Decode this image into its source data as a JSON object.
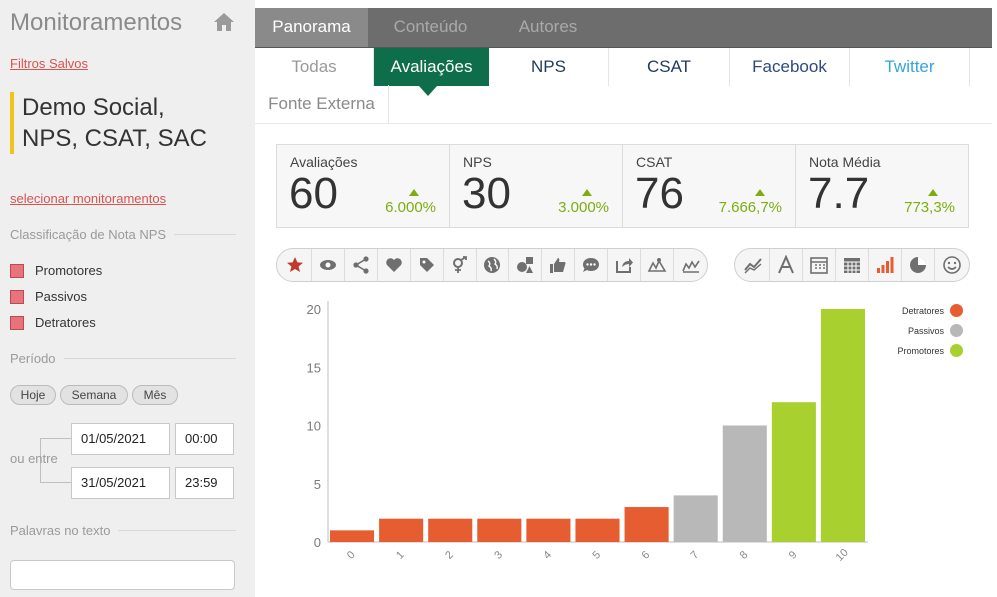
{
  "sidebar": {
    "title": "Monitoramentos",
    "saved_filters": "Filtros Salvos",
    "monitor_name": [
      "Demo Social,",
      "NPS, CSAT, SAC"
    ],
    "select_monitors": "selecionar monitoramentos",
    "nps_classification": {
      "heading": "Classificação de Nota NPS",
      "options": [
        "Promotores",
        "Passivos",
        "Detratores"
      ]
    },
    "period": {
      "heading": "Período",
      "presets": [
        "Hoje",
        "Semana",
        "Mês"
      ],
      "or_between": "ou entre",
      "start_date": "01/05/2021",
      "start_time": "00:00",
      "end_date": "31/05/2021",
      "end_time": "23:59"
    },
    "words_heading": "Palavras no texto"
  },
  "top_tabs": [
    "Panorama",
    "Conteúdo",
    "Autores"
  ],
  "sub_tabs": [
    "Todas",
    "Avaliações",
    "NPS",
    "CSAT",
    "Facebook",
    "Twitter",
    "Fonte Externa"
  ],
  "colors": {
    "sub_tabs": [
      "#9a9a9a",
      "#ffffff",
      "#1f3a5f",
      "#1f3a5f",
      "#2c4a80",
      "#35a5d9",
      "#8a8a8a"
    ],
    "detratores": "#e55d30",
    "passivos": "#b8b8b8",
    "promotores": "#a8d12f",
    "accent": "#0e6e4c"
  },
  "kpis": [
    {
      "label": "Avaliações",
      "value": "60",
      "delta": "6.000%"
    },
    {
      "label": "NPS",
      "value": "30",
      "delta": "3.000%"
    },
    {
      "label": "CSAT",
      "value": "76",
      "delta": "7.666,7%"
    },
    {
      "label": "Nota Média",
      "value": "7.7",
      "delta": "773,3%"
    }
  ],
  "toolbar_left_icons": [
    "star-icon",
    "eye-icon",
    "share-icon",
    "heart-icon",
    "tag-icon",
    "gender-icon",
    "globe-icon",
    "shapes-icon",
    "thumbs-icon",
    "chat-icon",
    "forward-icon",
    "map-icon",
    "map-alt-icon"
  ],
  "toolbar_right_icons": [
    "line-chart-icon",
    "font-icon",
    "calendar-icon",
    "calendar-grid-icon",
    "bar-chart-icon",
    "pie-chart-icon",
    "smiley-icon"
  ],
  "chart_data": {
    "type": "bar",
    "categories": [
      "0",
      "1",
      "2",
      "3",
      "4",
      "5",
      "6",
      "7",
      "8",
      "9",
      "10"
    ],
    "values": [
      1,
      2,
      2,
      2,
      2,
      2,
      3,
      4,
      10,
      12,
      20
    ],
    "bar_groups": [
      "Detratores",
      "Detratores",
      "Detratores",
      "Detratores",
      "Detratores",
      "Detratores",
      "Detratores",
      "Passivos",
      "Passivos",
      "Promotores",
      "Promotores"
    ],
    "ylim": [
      0,
      20
    ],
    "yticks": [
      0,
      5,
      10,
      15,
      20
    ],
    "legend": [
      "Detratores",
      "Passivos",
      "Promotores"
    ],
    "legend_position": "top-right"
  }
}
